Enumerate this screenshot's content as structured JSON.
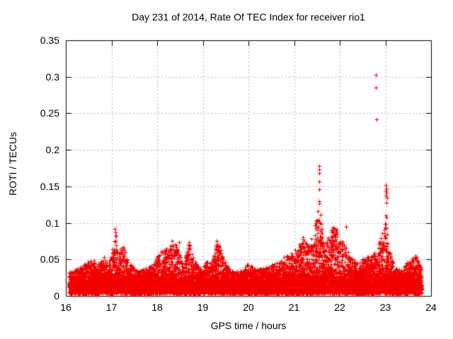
{
  "figure": {
    "background": "#ffffff",
    "border_color": "#000000"
  },
  "chart_data": {
    "type": "scatter",
    "title": "Day 231 of 2014, Rate Of TEC Index for receiver rio1",
    "xlabel": "GPS time / hours",
    "ylabel": "ROTI / TECUs",
    "xlim": [
      16,
      24
    ],
    "ylim": [
      0,
      0.35
    ],
    "xtick_values": [
      16,
      17,
      18,
      19,
      20,
      21,
      22,
      23,
      24
    ],
    "xtick_labels": [
      "16",
      "17",
      "18",
      "19",
      "20",
      "21",
      "22",
      "23",
      "24"
    ],
    "ytick_values": [
      0,
      0.05,
      0.1,
      0.15,
      0.2,
      0.25,
      0.3,
      0.35
    ],
    "ytick_labels": [
      "0",
      "0.05",
      "0.1",
      "0.15",
      "0.2",
      "0.25",
      "0.3",
      "0.35"
    ],
    "grid": true,
    "grid_color": "#b4b4b4",
    "axis_color": "#000000",
    "legend": "none",
    "marker": "plus",
    "marker_color": "#f30000",
    "marker_size": 7,
    "x_data_range": [
      16.08,
      23.79
    ],
    "n_points": 12000,
    "seed": 231,
    "noise_floor_min": 0.003,
    "noise_floor_sigma": 0.012,
    "spike_exponent": 3.2,
    "envelope": [
      [
        16.08,
        0.032
      ],
      [
        16.2,
        0.036
      ],
      [
        16.35,
        0.04
      ],
      [
        16.5,
        0.047
      ],
      [
        16.62,
        0.05
      ],
      [
        16.72,
        0.045
      ],
      [
        16.85,
        0.053
      ],
      [
        16.95,
        0.045
      ],
      [
        17.05,
        0.07
      ],
      [
        17.09,
        0.093
      ],
      [
        17.15,
        0.06
      ],
      [
        17.25,
        0.068
      ],
      [
        17.33,
        0.055
      ],
      [
        17.45,
        0.04
      ],
      [
        17.6,
        0.033
      ],
      [
        17.75,
        0.038
      ],
      [
        17.9,
        0.042
      ],
      [
        18.0,
        0.055
      ],
      [
        18.1,
        0.062
      ],
      [
        18.25,
        0.07
      ],
      [
        18.38,
        0.076
      ],
      [
        18.48,
        0.06
      ],
      [
        18.58,
        0.04
      ],
      [
        18.7,
        0.073
      ],
      [
        18.8,
        0.05
      ],
      [
        18.95,
        0.038
      ],
      [
        19.07,
        0.048
      ],
      [
        19.2,
        0.045
      ],
      [
        19.32,
        0.078
      ],
      [
        19.42,
        0.058
      ],
      [
        19.55,
        0.04
      ],
      [
        19.7,
        0.032
      ],
      [
        19.85,
        0.036
      ],
      [
        20.0,
        0.044
      ],
      [
        20.15,
        0.036
      ],
      [
        20.3,
        0.038
      ],
      [
        20.45,
        0.04
      ],
      [
        20.6,
        0.046
      ],
      [
        20.75,
        0.053
      ],
      [
        20.9,
        0.055
      ],
      [
        21.05,
        0.065
      ],
      [
        21.2,
        0.078
      ],
      [
        21.35,
        0.07
      ],
      [
        21.48,
        0.105
      ],
      [
        21.56,
        0.13
      ],
      [
        21.65,
        0.075
      ],
      [
        21.8,
        0.09
      ],
      [
        21.9,
        0.096
      ],
      [
        22.0,
        0.08
      ],
      [
        22.1,
        0.072
      ],
      [
        22.2,
        0.062
      ],
      [
        22.35,
        0.045
      ],
      [
        22.5,
        0.05
      ],
      [
        22.65,
        0.055
      ],
      [
        22.78,
        0.062
      ],
      [
        22.9,
        0.08
      ],
      [
        23.0,
        0.105
      ],
      [
        23.08,
        0.062
      ],
      [
        23.2,
        0.04
      ],
      [
        23.35,
        0.034
      ],
      [
        23.5,
        0.048
      ],
      [
        23.66,
        0.056
      ],
      [
        23.79,
        0.038
      ]
    ],
    "outliers": [
      [
        22.79,
        0.303
      ],
      [
        22.79,
        0.285
      ],
      [
        22.8,
        0.242
      ],
      [
        21.545,
        0.178
      ],
      [
        21.55,
        0.173
      ],
      [
        21.545,
        0.168
      ],
      [
        21.55,
        0.157
      ],
      [
        21.545,
        0.146
      ],
      [
        21.55,
        0.13
      ],
      [
        21.545,
        0.102
      ],
      [
        23.0,
        0.152
      ],
      [
        23.02,
        0.147
      ],
      [
        23.0,
        0.144
      ],
      [
        23.03,
        0.141
      ],
      [
        23.01,
        0.137
      ],
      [
        23.04,
        0.134
      ],
      [
        23.02,
        0.128
      ],
      [
        23.0,
        0.11
      ],
      [
        23.03,
        0.107
      ],
      [
        23.01,
        0.099
      ],
      [
        17.07,
        0.092
      ],
      [
        17.08,
        0.087
      ],
      [
        17.08,
        0.082
      ],
      [
        17.09,
        0.075
      ],
      [
        17.1,
        0.07
      ],
      [
        17.1,
        0.064
      ],
      [
        17.11,
        0.058
      ],
      [
        19.31,
        0.075
      ],
      [
        19.32,
        0.071
      ],
      [
        19.33,
        0.068
      ],
      [
        19.35,
        0.063
      ],
      [
        19.37,
        0.057
      ],
      [
        19.39,
        0.051
      ],
      [
        19.42,
        0.045
      ],
      [
        18.33,
        0.075
      ],
      [
        18.36,
        0.07
      ],
      [
        18.42,
        0.067
      ],
      [
        18.28,
        0.064
      ],
      [
        18.48,
        0.073
      ],
      [
        18.7,
        0.073
      ],
      [
        18.72,
        0.066
      ],
      [
        21.82,
        0.09
      ],
      [
        21.84,
        0.094
      ],
      [
        21.86,
        0.088
      ],
      [
        21.88,
        0.092
      ],
      [
        21.9,
        0.085
      ],
      [
        22.14,
        0.095
      ],
      [
        21.47,
        0.1
      ],
      [
        21.49,
        0.095
      ],
      [
        16.84,
        0.053
      ],
      [
        17.27,
        0.065
      ],
      [
        20.85,
        0.055
      ],
      [
        21.2,
        0.08
      ],
      [
        21.22,
        0.075
      ],
      [
        23.66,
        0.055
      ]
    ]
  }
}
